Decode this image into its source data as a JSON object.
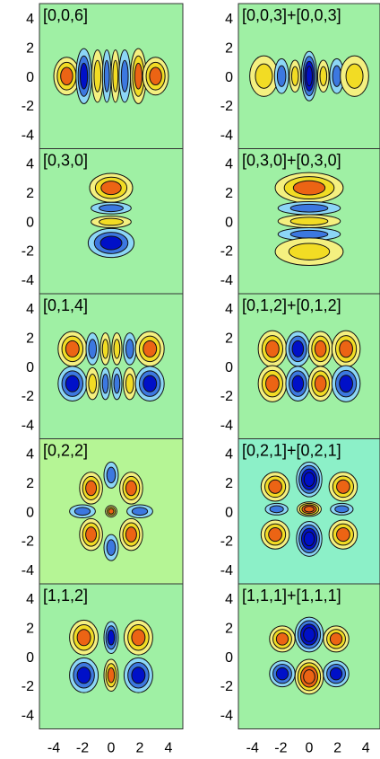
{
  "y_ticks": [
    "4",
    "2",
    "0",
    "-2",
    "-4"
  ],
  "x_ticks": [
    "-4",
    "-2",
    "0",
    "2",
    "4"
  ],
  "colors": {
    "bg_plain": "#9ff0a4",
    "bg_yellowish": "#b5f595",
    "bg_cyanish": "#8cf0c8",
    "deep_neg": "#0010c8",
    "neg_mid": "#3c78e0",
    "neg_light": "#8cd6f6",
    "pos_light": "#f4f080",
    "pos_mid": "#f2dc24",
    "deep_pos": "#ec6414",
    "line": "#111111"
  },
  "panels": [
    {
      "label": "[0,0,6]",
      "bg": "bg_plain",
      "blobs": [
        {
          "x": -3.1,
          "y": 0,
          "rx": 0.9,
          "ry": 1.3,
          "levels": 3,
          "sign": 1
        },
        {
          "x": -1.9,
          "y": 0,
          "rx": 0.55,
          "ry": 1.9,
          "levels": 3,
          "sign": -1
        },
        {
          "x": -0.95,
          "y": 0,
          "rx": 0.4,
          "ry": 1.8,
          "levels": 2,
          "sign": 1
        },
        {
          "x": -0.3,
          "y": 0,
          "rx": 0.3,
          "ry": 1.8,
          "levels": 2,
          "sign": -1
        },
        {
          "x": 0.3,
          "y": 0,
          "rx": 0.3,
          "ry": 1.8,
          "levels": 2,
          "sign": 1
        },
        {
          "x": 0.95,
          "y": 0,
          "rx": 0.4,
          "ry": 1.8,
          "levels": 2,
          "sign": -1
        },
        {
          "x": 1.9,
          "y": 0,
          "rx": 0.55,
          "ry": 1.9,
          "levels": 3,
          "sign": 1
        },
        {
          "x": 3.1,
          "y": 0,
          "rx": 0.9,
          "ry": 1.3,
          "levels": 3,
          "sign": 1
        }
      ]
    },
    {
      "label": "[0,0,3]+[0,0,3]",
      "bg": "bg_plain",
      "blobs": [
        {
          "x": -3.2,
          "y": 0,
          "rx": 1.0,
          "ry": 1.4,
          "levels": 2,
          "sign": 1
        },
        {
          "x": -1.95,
          "y": 0,
          "rx": 0.5,
          "ry": 1.2,
          "levels": 2,
          "sign": -1
        },
        {
          "x": -1.0,
          "y": 0,
          "rx": 0.4,
          "ry": 1.1,
          "levels": 2,
          "sign": 1
        },
        {
          "x": 0,
          "y": 0,
          "rx": 0.55,
          "ry": 1.7,
          "levels": 4,
          "sign": -1
        },
        {
          "x": 1.0,
          "y": 0,
          "rx": 0.4,
          "ry": 1.1,
          "levels": 2,
          "sign": 1
        },
        {
          "x": 1.95,
          "y": 0,
          "rx": 0.5,
          "ry": 1.2,
          "levels": 2,
          "sign": -1
        },
        {
          "x": 3.2,
          "y": 0,
          "rx": 1.0,
          "ry": 1.4,
          "levels": 2,
          "sign": 1
        }
      ]
    },
    {
      "label": "[0,3,0]",
      "bg": "bg_plain",
      "blobs": [
        {
          "x": 0,
          "y": 2.3,
          "rx": 1.5,
          "ry": 1.0,
          "levels": 3,
          "sign": 1
        },
        {
          "x": 0,
          "y": 0.9,
          "rx": 1.4,
          "ry": 0.4,
          "levels": 2,
          "sign": -1
        },
        {
          "x": 0,
          "y": -0.05,
          "rx": 1.4,
          "ry": 0.4,
          "levels": 2,
          "sign": 1
        },
        {
          "x": 0,
          "y": -1.5,
          "rx": 1.6,
          "ry": 1.0,
          "levels": 3,
          "sign": -1
        }
      ]
    },
    {
      "label": "[0,3,0]+[0,3,0]",
      "bg": "bg_plain",
      "blobs": [
        {
          "x": 0,
          "y": 2.3,
          "rx": 2.4,
          "ry": 1.05,
          "levels": 3,
          "sign": 1
        },
        {
          "x": 0,
          "y": 0.9,
          "rx": 2.2,
          "ry": 0.45,
          "levels": 2,
          "sign": -1
        },
        {
          "x": 0,
          "y": 0,
          "rx": 2.2,
          "ry": 0.45,
          "levels": 2,
          "sign": 1
        },
        {
          "x": 0,
          "y": -0.9,
          "rx": 2.2,
          "ry": 0.45,
          "levels": 2,
          "sign": -1
        },
        {
          "x": 0,
          "y": -2.1,
          "rx": 2.4,
          "ry": 0.95,
          "levels": 2,
          "sign": 1
        }
      ]
    },
    {
      "label": "[0,1,4]",
      "bg": "bg_plain",
      "blobs": [
        {
          "x": -2.7,
          "y": 1.2,
          "rx": 1.0,
          "ry": 1.2,
          "levels": 3,
          "sign": 1
        },
        {
          "x": -1.3,
          "y": 1.2,
          "rx": 0.45,
          "ry": 1.1,
          "levels": 2,
          "sign": -1
        },
        {
          "x": -0.4,
          "y": 1.2,
          "rx": 0.35,
          "ry": 1.1,
          "levels": 2,
          "sign": 1
        },
        {
          "x": 0.4,
          "y": 1.2,
          "rx": 0.35,
          "ry": 1.1,
          "levels": 2,
          "sign": 1
        },
        {
          "x": 1.3,
          "y": 1.2,
          "rx": 0.45,
          "ry": 1.1,
          "levels": 2,
          "sign": -1
        },
        {
          "x": 2.7,
          "y": 1.2,
          "rx": 1.0,
          "ry": 1.2,
          "levels": 3,
          "sign": 1
        },
        {
          "x": -2.7,
          "y": -1.2,
          "rx": 1.0,
          "ry": 1.2,
          "levels": 3,
          "sign": -1
        },
        {
          "x": -1.3,
          "y": -1.2,
          "rx": 0.45,
          "ry": 1.1,
          "levels": 2,
          "sign": 1
        },
        {
          "x": -0.4,
          "y": -1.2,
          "rx": 0.35,
          "ry": 1.1,
          "levels": 2,
          "sign": -1
        },
        {
          "x": 0.4,
          "y": -1.2,
          "rx": 0.35,
          "ry": 1.1,
          "levels": 2,
          "sign": -1
        },
        {
          "x": 1.3,
          "y": -1.2,
          "rx": 0.45,
          "ry": 1.1,
          "levels": 2,
          "sign": 1
        },
        {
          "x": 2.7,
          "y": -1.2,
          "rx": 1.0,
          "ry": 1.2,
          "levels": 3,
          "sign": -1
        }
      ]
    },
    {
      "label": "[0,1,2]+[0,1,2]",
      "bg": "bg_plain",
      "blobs": [
        {
          "x": -2.6,
          "y": 1.2,
          "rx": 1.0,
          "ry": 1.25,
          "levels": 3,
          "sign": 1
        },
        {
          "x": -0.8,
          "y": 1.2,
          "rx": 0.85,
          "ry": 1.2,
          "levels": 3,
          "sign": -1
        },
        {
          "x": 0.8,
          "y": 1.2,
          "rx": 0.85,
          "ry": 1.2,
          "levels": 3,
          "sign": 1
        },
        {
          "x": 2.6,
          "y": 1.2,
          "rx": 1.0,
          "ry": 1.25,
          "levels": 3,
          "sign": 1
        },
        {
          "x": -2.6,
          "y": -1.2,
          "rx": 1.0,
          "ry": 1.25,
          "levels": 3,
          "sign": 1
        },
        {
          "x": -0.8,
          "y": -1.2,
          "rx": 0.85,
          "ry": 1.2,
          "levels": 3,
          "sign": -1
        },
        {
          "x": 0.8,
          "y": -1.2,
          "rx": 0.85,
          "ry": 1.2,
          "levels": 3,
          "sign": 1
        },
        {
          "x": 2.6,
          "y": -1.2,
          "rx": 1.0,
          "ry": 1.25,
          "levels": 3,
          "sign": -1
        }
      ]
    },
    {
      "label": "[0,2,2]",
      "bg": "bg_yellowish",
      "blobs": [
        {
          "x": 0,
          "y": 2.5,
          "rx": 0.5,
          "ry": 0.9,
          "levels": 2,
          "sign": -1
        },
        {
          "x": 0,
          "y": -2.5,
          "rx": 0.5,
          "ry": 0.9,
          "levels": 2,
          "sign": -1
        },
        {
          "x": -1.4,
          "y": 1.6,
          "rx": 0.8,
          "ry": 1.1,
          "levels": 3,
          "sign": 1
        },
        {
          "x": 1.4,
          "y": 1.6,
          "rx": 0.8,
          "ry": 1.1,
          "levels": 3,
          "sign": 1
        },
        {
          "x": -1.4,
          "y": -1.6,
          "rx": 0.8,
          "ry": 1.1,
          "levels": 3,
          "sign": 1
        },
        {
          "x": 1.4,
          "y": -1.6,
          "rx": 0.8,
          "ry": 1.1,
          "levels": 3,
          "sign": 1
        },
        {
          "x": -2.0,
          "y": 0,
          "rx": 0.9,
          "ry": 0.45,
          "levels": 2,
          "sign": -1
        },
        {
          "x": 2.0,
          "y": 0,
          "rx": 0.9,
          "ry": 0.45,
          "levels": 2,
          "sign": -1
        },
        {
          "x": 0,
          "y": 0,
          "rx": 0.4,
          "ry": 0.4,
          "levels": 3,
          "sign": 1
        }
      ]
    },
    {
      "label": "[0,2,1]+[0,2,1]",
      "bg": "bg_cyanish",
      "blobs": [
        {
          "x": 0,
          "y": 2.2,
          "rx": 0.9,
          "ry": 1.2,
          "levels": 4,
          "sign": -1
        },
        {
          "x": 0,
          "y": -1.9,
          "rx": 0.9,
          "ry": 1.2,
          "levels": 4,
          "sign": -1
        },
        {
          "x": 0,
          "y": 0.15,
          "rx": 0.85,
          "ry": 0.5,
          "levels": 4,
          "sign": 1
        },
        {
          "x": -2.4,
          "y": 1.7,
          "rx": 1.0,
          "ry": 1.0,
          "levels": 3,
          "sign": 1
        },
        {
          "x": 2.4,
          "y": 1.7,
          "rx": 1.0,
          "ry": 1.0,
          "levels": 3,
          "sign": 1
        },
        {
          "x": -2.4,
          "y": -1.6,
          "rx": 1.0,
          "ry": 1.0,
          "levels": 3,
          "sign": 1
        },
        {
          "x": 2.4,
          "y": -1.6,
          "rx": 1.0,
          "ry": 1.0,
          "levels": 3,
          "sign": 1
        },
        {
          "x": -2.3,
          "y": 0.15,
          "rx": 0.8,
          "ry": 0.4,
          "levels": 2,
          "sign": -1
        },
        {
          "x": 2.3,
          "y": 0.15,
          "rx": 0.8,
          "ry": 0.4,
          "levels": 2,
          "sign": -1
        }
      ]
    },
    {
      "label": "[1,1,2]",
      "bg": "bg_plain",
      "blobs": [
        {
          "x": -1.9,
          "y": 1.3,
          "rx": 1.0,
          "ry": 1.2,
          "levels": 3,
          "sign": 1
        },
        {
          "x": 0,
          "y": 1.3,
          "rx": 0.5,
          "ry": 1.1,
          "levels": 3,
          "sign": -1
        },
        {
          "x": 1.9,
          "y": 1.3,
          "rx": 1.0,
          "ry": 1.2,
          "levels": 3,
          "sign": 1
        },
        {
          "x": -1.9,
          "y": -1.3,
          "rx": 1.0,
          "ry": 1.2,
          "levels": 3,
          "sign": -1
        },
        {
          "x": 0,
          "y": -1.3,
          "rx": 0.5,
          "ry": 1.1,
          "levels": 3,
          "sign": 1
        },
        {
          "x": 1.9,
          "y": -1.3,
          "rx": 1.0,
          "ry": 1.2,
          "levels": 3,
          "sign": -1
        }
      ]
    },
    {
      "label": "[1,1,1]+[1,1,1]",
      "bg": "bg_plain",
      "blobs": [
        {
          "x": 0,
          "y": 1.5,
          "rx": 1.0,
          "ry": 1.2,
          "levels": 4,
          "sign": -1
        },
        {
          "x": 0,
          "y": -1.4,
          "rx": 1.0,
          "ry": 1.2,
          "levels": 4,
          "sign": 1
        },
        {
          "x": -1.9,
          "y": 1.2,
          "rx": 0.9,
          "ry": 0.9,
          "levels": 3,
          "sign": 1
        },
        {
          "x": 1.9,
          "y": 1.2,
          "rx": 0.9,
          "ry": 0.9,
          "levels": 3,
          "sign": 1
        },
        {
          "x": -1.9,
          "y": -1.2,
          "rx": 0.9,
          "ry": 0.9,
          "levels": 3,
          "sign": -1
        },
        {
          "x": 1.9,
          "y": -1.2,
          "rx": 0.9,
          "ry": 0.9,
          "levels": 3,
          "sign": -1
        }
      ]
    }
  ]
}
